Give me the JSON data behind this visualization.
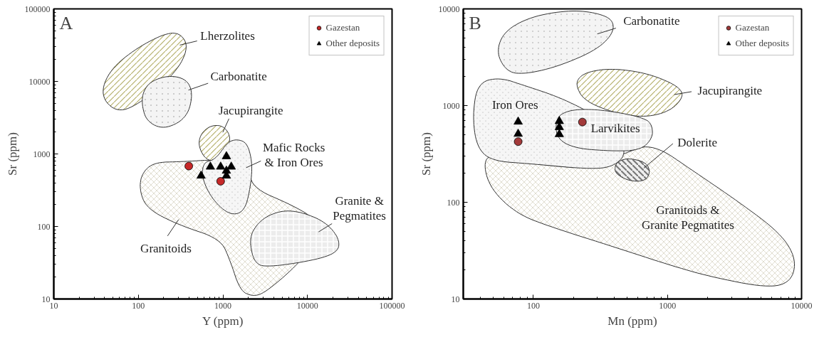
{
  "chart_data": [
    {
      "type": "scatter",
      "title": "A",
      "xlabel": "Y (ppm)",
      "ylabel": "Sr (ppm)",
      "log": "xy",
      "xlim": [
        10,
        100000
      ],
      "ylim": [
        10,
        100000
      ],
      "xticks": [
        10,
        100,
        1000,
        10000,
        100000
      ],
      "yticks": [
        10,
        100,
        1000,
        10000,
        100000
      ],
      "grid": false,
      "legend": "top right",
      "series": [
        {
          "name": "Gazestan",
          "color": "#c62828",
          "marker": "circle",
          "x": [
            395,
            940
          ],
          "values": [
            680,
            420
          ]
        },
        {
          "name": "Other deposits",
          "color": "#000000",
          "marker": "triangle",
          "x": [
            552,
            711,
            940,
            1100,
            1255,
            1100,
            1100
          ],
          "values": [
            500,
            665,
            665,
            925,
            665,
            585,
            500
          ]
        }
      ],
      "annotations": [
        "Lherzolites",
        "Carbonatite",
        "Jacupirangite",
        "Mafic Rocks\n& Iron Ores",
        "Granite &\nPegmatites",
        "Granitoids"
      ]
    },
    {
      "type": "scatter",
      "title": "B",
      "xlabel": "Mn (ppm)",
      "ylabel": "Sr (ppm)",
      "log": "xy",
      "xlim": [
        30,
        10000
      ],
      "ylim": [
        10,
        10000
      ],
      "xticks": [
        100,
        1000,
        10000
      ],
      "yticks": [
        10,
        100,
        1000,
        10000
      ],
      "grid": false,
      "legend": "top right",
      "series": [
        {
          "name": "Gazestan",
          "color": "#a33a3a",
          "marker": "circle",
          "x": [
            77,
            232
          ],
          "values": [
            424,
            676
          ]
        },
        {
          "name": "Other deposits",
          "color": "#000000",
          "marker": "triangle",
          "x": [
            77,
            77,
            156,
            156,
            156
          ],
          "values": [
            680,
            509,
            690,
            597,
            505
          ]
        }
      ],
      "annotations": [
        "Carbonatite",
        "Jacupirangite",
        "Dolerite",
        "Granitoids &\nGranite Pegmatites",
        "Iron Ores",
        "Larvikites"
      ]
    }
  ]
}
